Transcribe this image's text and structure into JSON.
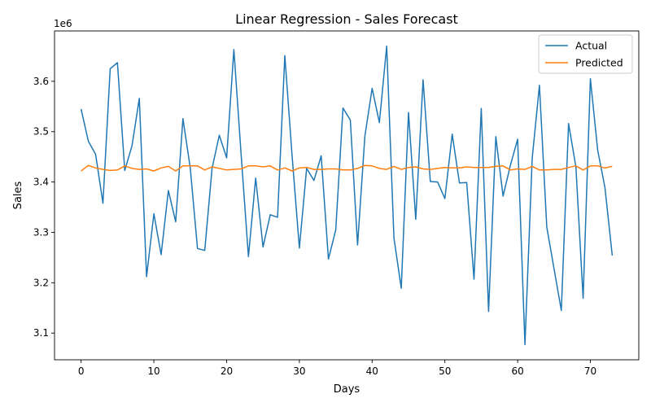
{
  "chart_data": {
    "type": "line",
    "title": "Linear Regression - Sales Forecast",
    "xlabel": "Days",
    "ylabel": "Sales",
    "offset_label": "1e6",
    "scale": 1000000,
    "xlim": [
      -3.65,
      76.65
    ],
    "ylim": [
      3.047,
      3.7
    ],
    "xticks": [
      0,
      10,
      20,
      30,
      40,
      50,
      60,
      70
    ],
    "xtick_labels": [
      "0",
      "10",
      "20",
      "30",
      "40",
      "50",
      "60",
      "70"
    ],
    "yticks": [
      3.1,
      3.2,
      3.3,
      3.4,
      3.5,
      3.6
    ],
    "ytick_labels": [
      "3.1",
      "3.2",
      "3.3",
      "3.4",
      "3.5",
      "3.6"
    ],
    "grid": false,
    "legend_position": "top-right",
    "x": [
      0,
      1,
      2,
      3,
      4,
      5,
      6,
      7,
      8,
      9,
      10,
      11,
      12,
      13,
      14,
      15,
      16,
      17,
      18,
      19,
      20,
      21,
      22,
      23,
      24,
      25,
      26,
      27,
      28,
      29,
      30,
      31,
      32,
      33,
      34,
      35,
      36,
      37,
      38,
      39,
      40,
      41,
      42,
      43,
      44,
      45,
      46,
      47,
      48,
      49,
      50,
      51,
      52,
      53,
      54,
      55,
      56,
      57,
      58,
      59,
      60,
      61,
      62,
      63,
      64,
      65,
      66,
      67,
      68,
      69,
      70,
      71,
      72,
      73
    ],
    "series": [
      {
        "name": "Actual",
        "color": "#1f77b4",
        "values": [
          3.545,
          3.481,
          3.455,
          3.358,
          3.625,
          3.637,
          3.423,
          3.472,
          3.566,
          3.212,
          3.337,
          3.256,
          3.383,
          3.321,
          3.526,
          3.428,
          3.268,
          3.264,
          3.427,
          3.493,
          3.448,
          3.663,
          3.455,
          3.252,
          3.408,
          3.271,
          3.335,
          3.33,
          3.651,
          3.453,
          3.269,
          3.427,
          3.403,
          3.452,
          3.247,
          3.305,
          3.547,
          3.523,
          3.275,
          3.491,
          3.586,
          3.518,
          3.67,
          3.289,
          3.189,
          3.538,
          3.326,
          3.603,
          3.401,
          3.4,
          3.367,
          3.495,
          3.398,
          3.399,
          3.207,
          3.546,
          3.143,
          3.49,
          3.372,
          3.433,
          3.485,
          3.077,
          3.447,
          3.592,
          3.311,
          3.228,
          3.145,
          3.516,
          3.43,
          3.169,
          3.605,
          3.463,
          3.389,
          3.254
        ]
      },
      {
        "name": "Predicted",
        "color": "#ff7f0e",
        "values": [
          3.422,
          3.433,
          3.428,
          3.425,
          3.423,
          3.424,
          3.432,
          3.427,
          3.425,
          3.426,
          3.422,
          3.428,
          3.431,
          3.422,
          3.432,
          3.432,
          3.432,
          3.424,
          3.43,
          3.427,
          3.424,
          3.425,
          3.426,
          3.432,
          3.432,
          3.43,
          3.432,
          3.424,
          3.428,
          3.422,
          3.428,
          3.429,
          3.425,
          3.425,
          3.426,
          3.426,
          3.424,
          3.424,
          3.427,
          3.433,
          3.432,
          3.427,
          3.425,
          3.431,
          3.425,
          3.429,
          3.43,
          3.426,
          3.425,
          3.427,
          3.429,
          3.428,
          3.428,
          3.43,
          3.429,
          3.429,
          3.429,
          3.431,
          3.432,
          3.424,
          3.426,
          3.425,
          3.431,
          3.424,
          3.424,
          3.425,
          3.425,
          3.429,
          3.432,
          3.424,
          3.432,
          3.432,
          3.428,
          3.431
        ]
      }
    ]
  }
}
